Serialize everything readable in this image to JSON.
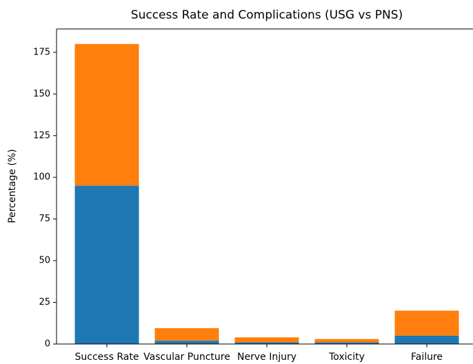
{
  "chart_data": {
    "type": "stacked_bar",
    "title": "Success Rate and Complications (USG vs PNS)",
    "y_label": "Percentage (%)",
    "categories": [
      "Success Rate",
      "Vascular Puncture",
      "Nerve Injury",
      "Toxicity",
      "Failure"
    ],
    "series": [
      {
        "color": "#1f77b4",
        "values": [
          95,
          2,
          1,
          1,
          5
        ]
      },
      {
        "color": "#ff7f0e",
        "values": [
          85,
          7.5,
          3,
          2,
          15
        ]
      }
    ],
    "ylim": [
      0,
      189
    ],
    "yticks": [
      0,
      25,
      50,
      75,
      100,
      125,
      150,
      175
    ]
  }
}
